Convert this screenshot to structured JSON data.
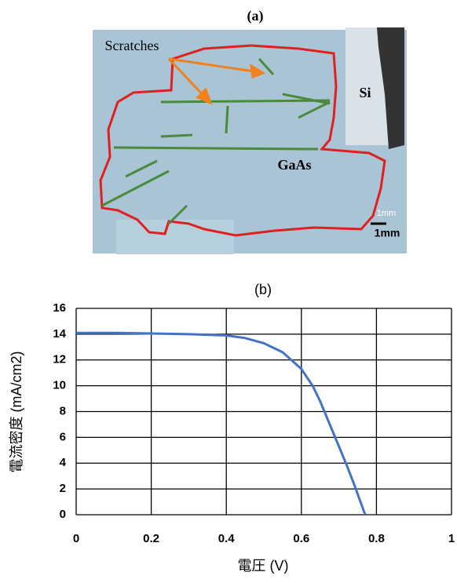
{
  "image_panel": {
    "label": "(a)",
    "annotations": [
      "Scratches",
      "Si",
      "GaAs",
      "1mm",
      "1mm"
    ]
  },
  "chart_data": {
    "type": "line",
    "title": "(b)",
    "x_label": "電圧 (V)",
    "y_label": "電流密度 (mA/cm2)",
    "x": [
      0,
      0.1,
      0.2,
      0.3,
      0.4,
      0.45,
      0.5,
      0.55,
      0.6,
      0.63,
      0.65,
      0.67,
      0.7,
      0.72,
      0.74,
      0.76,
      0.77
    ],
    "series": [
      {
        "color": "#4472c4",
        "values": [
          14.1,
          14.1,
          14.05,
          14.0,
          13.9,
          13.7,
          13.3,
          12.6,
          11.3,
          10.0,
          8.8,
          7.4,
          5.3,
          3.9,
          2.4,
          0.8,
          0
        ]
      }
    ],
    "xlim": [
      0,
      1
    ],
    "xticks": [
      0,
      0.2,
      0.4,
      0.6,
      0.8,
      1
    ],
    "ylim": [
      0,
      16
    ],
    "yticks": [
      0,
      2,
      4,
      6,
      8,
      10,
      12,
      14,
      16
    ],
    "grid": true
  }
}
